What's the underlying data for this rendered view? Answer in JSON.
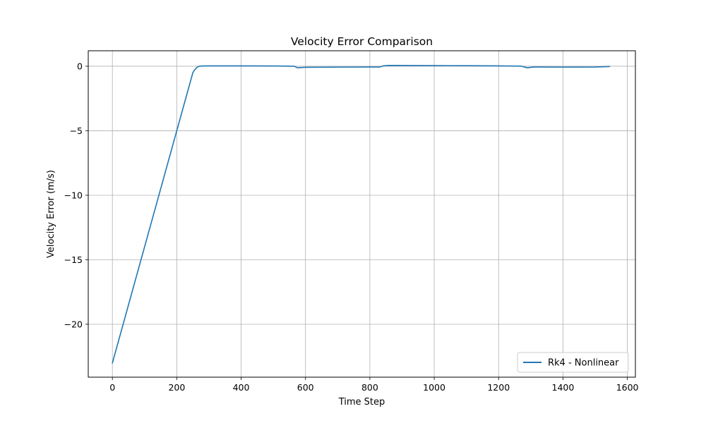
{
  "chart_data": {
    "type": "line",
    "title": "Velocity Error Comparison",
    "xlabel": "Time Step",
    "ylabel": "Velocity Error (m/s)",
    "xlim": [
      -75,
      1625
    ],
    "ylim": [
      -24.1,
      1.2
    ],
    "xticks": [
      0,
      200,
      400,
      600,
      800,
      1000,
      1200,
      1400,
      1600
    ],
    "yticks": [
      0,
      -5,
      -10,
      -15,
      -20
    ],
    "ytick_labels": [
      "0",
      "−5",
      "−10",
      "−15",
      "−20"
    ],
    "grid": true,
    "legend_position": "lower-right",
    "series": [
      {
        "name": "Rk4 - Nonlinear",
        "color": "#1f77b4",
        "x": [
          0,
          50,
          100,
          150,
          200,
          240,
          250,
          255,
          260,
          265,
          270,
          280,
          300,
          400,
          500,
          565,
          575,
          585,
          600,
          700,
          800,
          830,
          840,
          850,
          860,
          1000,
          1100,
          1200,
          1270,
          1280,
          1290,
          1300,
          1310,
          1400,
          1500,
          1545
        ],
        "y": [
          -23.0,
          -18.5,
          -14.0,
          -9.5,
          -5.0,
          -1.4,
          -0.5,
          -0.3,
          -0.15,
          -0.05,
          0.0,
          0.02,
          0.03,
          0.03,
          0.02,
          0.0,
          -0.12,
          -0.1,
          -0.08,
          -0.07,
          -0.06,
          -0.06,
          0.02,
          0.05,
          0.06,
          0.05,
          0.04,
          0.03,
          0.01,
          -0.06,
          -0.12,
          -0.08,
          -0.06,
          -0.07,
          -0.06,
          -0.02
        ]
      }
    ]
  }
}
